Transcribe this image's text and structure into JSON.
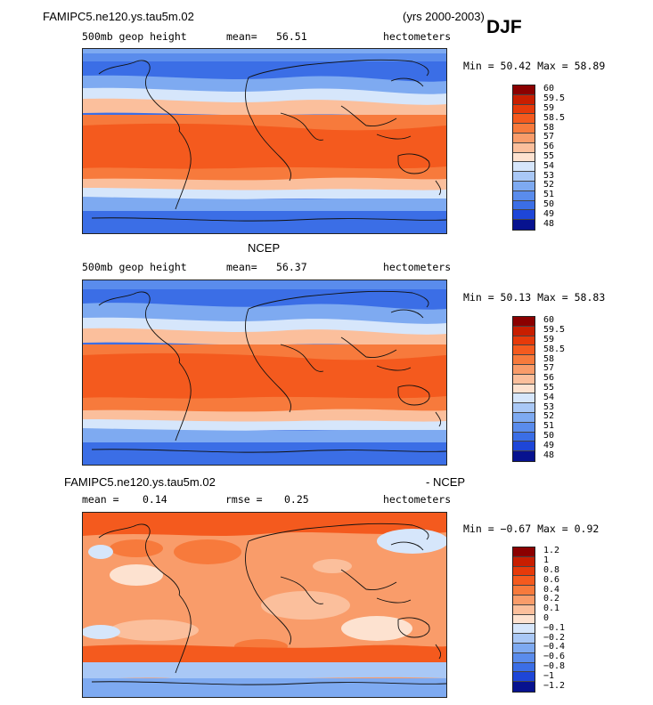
{
  "header": {
    "case_name": "FAMIPC5.ne120.ys.tau5m.02",
    "years": "(yrs 2000-2003)",
    "season": "DJF"
  },
  "panels": [
    {
      "variable": "500mb geop height",
      "mean_label": "mean=",
      "mean_value": "56.51",
      "units": "hectometers",
      "min_max": "Min =  50.42 Max =  58.89",
      "colorbar": [
        "60",
        "59.5",
        "59",
        "58.5",
        "58",
        "57",
        "56",
        "55",
        "54",
        "53",
        "52",
        "51",
        "50",
        "49",
        "48"
      ],
      "colors": [
        "#8b0000",
        "#c81e00",
        "#e63a0a",
        "#f45a1e",
        "#f77a3c",
        "#f99c6a",
        "#fbbf9c",
        "#fde2d0",
        "#d6e6fb",
        "#a9c8f6",
        "#7eaaf1",
        "#5a8cec",
        "#3b6ee6",
        "#1e46d8",
        "#07128f"
      ]
    },
    {
      "title": "NCEP",
      "variable": "500mb geop height",
      "mean_label": "mean=",
      "mean_value": "56.37",
      "units": "hectometers",
      "min_max": "Min =  50.13 Max =  58.83",
      "colorbar": [
        "60",
        "59.5",
        "59",
        "58.5",
        "58",
        "57",
        "56",
        "55",
        "54",
        "53",
        "52",
        "51",
        "50",
        "49",
        "48"
      ],
      "colors": [
        "#8b0000",
        "#c81e00",
        "#e63a0a",
        "#f45a1e",
        "#f77a3c",
        "#f99c6a",
        "#fbbf9c",
        "#fde2d0",
        "#d6e6fb",
        "#a9c8f6",
        "#7eaaf1",
        "#5a8cec",
        "#3b6ee6",
        "#1e46d8",
        "#07128f"
      ]
    },
    {
      "title_left": "FAMIPC5.ne120.ys.tau5m.02",
      "title_right": "- NCEP",
      "mean_label": "mean =",
      "mean_value": "0.14",
      "rmse_label": "rmse =",
      "rmse_value": "0.25",
      "units": "hectometers",
      "min_max": "Min =  −0.67 Max =    0.92",
      "colorbar": [
        "1.2",
        "1",
        "0.8",
        "0.6",
        "0.4",
        "0.2",
        "0.1",
        "0",
        "−0.1",
        "−0.2",
        "−0.4",
        "−0.6",
        "−0.8",
        "−1",
        "−1.2"
      ],
      "colors": [
        "#8b0000",
        "#c81e00",
        "#e63a0a",
        "#f45a1e",
        "#f77a3c",
        "#f99c6a",
        "#fbbf9c",
        "#fde2d0",
        "#d6e6fb",
        "#a9c8f6",
        "#7eaaf1",
        "#5a8cec",
        "#3b6ee6",
        "#1e46d8",
        "#07128f"
      ]
    }
  ]
}
